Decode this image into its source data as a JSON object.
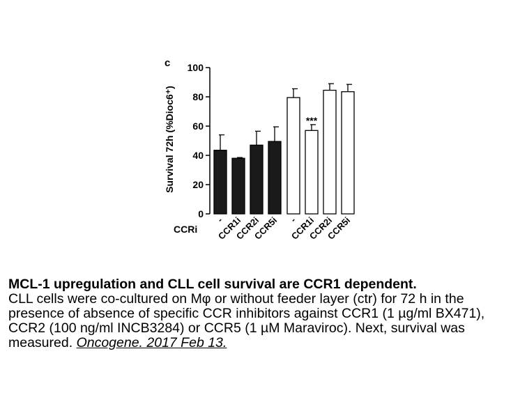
{
  "chart_data": {
    "type": "bar",
    "panel_label": "c",
    "ylabel": "Survival 72h (%Dioc6⁺)",
    "xlabel": "CCRi",
    "ylim": [
      0,
      100
    ],
    "yticks": [
      0,
      20,
      40,
      60,
      80,
      100
    ],
    "categories": [
      "-",
      "CCR1i",
      "CCR2i",
      "CCR5i",
      "-",
      "CCR1i",
      "CCR2i",
      "CCR5i"
    ],
    "values": [
      43.5,
      38,
      47,
      49.5,
      79.5,
      57,
      84.5,
      83.5
    ],
    "errors": [
      10.5,
      0.5,
      9.5,
      10,
      6,
      4,
      4.5,
      5
    ],
    "fill": [
      "#1a1a1a",
      "#1a1a1a",
      "#1a1a1a",
      "#1a1a1a",
      "#ffffff",
      "#ffffff",
      "#ffffff",
      "#ffffff"
    ],
    "annotation": {
      "index": 5,
      "text": "***"
    }
  },
  "caption": {
    "title": "MCL-1 upregulation and CLL cell survival are CCR1 dependent.",
    "body": "CLL cells were co-cultured on Mφ or without feeder layer (ctr) for 72 h in the presence of absence of specific CCR inhibitors against CCR1 (1 µg/ml BX471), CCR2 (100 ng/ml INCB3284) or CCR5 (1 µM Maraviroc). Next, survival was measured.",
    "citation": "Oncogene. 2017 Feb 13."
  }
}
